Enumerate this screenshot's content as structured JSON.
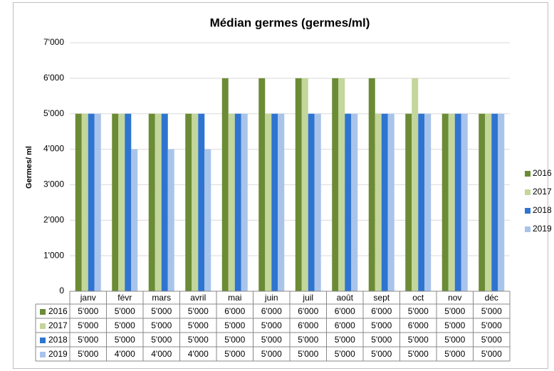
{
  "chart_data": {
    "type": "bar",
    "title": "Médian germes (germes/ml)",
    "y_label": "Germes/ ml",
    "categories": [
      "janv",
      "févr",
      "mars",
      "avril",
      "mai",
      "juin",
      "juil",
      "août",
      "sept",
      "oct",
      "nov",
      "déc"
    ],
    "series": [
      {
        "name": "2016",
        "color": "#6b8b35",
        "values": [
          5000,
          5000,
          5000,
          5000,
          6000,
          6000,
          6000,
          6000,
          6000,
          5000,
          5000,
          5000
        ],
        "value_labels": [
          "5'000",
          "5'000",
          "5'000",
          "5'000",
          "6'000",
          "6'000",
          "6'000",
          "6'000",
          "6'000",
          "5'000",
          "5'000",
          "5'000"
        ]
      },
      {
        "name": "2017",
        "color": "#c3d69b",
        "values": [
          5000,
          5000,
          5000,
          5000,
          5000,
          5000,
          6000,
          6000,
          5000,
          6000,
          5000,
          5000
        ],
        "value_labels": [
          "5'000",
          "5'000",
          "5'000",
          "5'000",
          "5'000",
          "5'000",
          "6'000",
          "6'000",
          "5'000",
          "6'000",
          "5'000",
          "5'000"
        ]
      },
      {
        "name": "2018",
        "color": "#2f74d0",
        "values": [
          5000,
          5000,
          5000,
          5000,
          5000,
          5000,
          5000,
          5000,
          5000,
          5000,
          5000,
          5000
        ],
        "value_labels": [
          "5'000",
          "5'000",
          "5'000",
          "5'000",
          "5'000",
          "5'000",
          "5'000",
          "5'000",
          "5'000",
          "5'000",
          "5'000",
          "5'000"
        ]
      },
      {
        "name": "2019",
        "color": "#a9c4eb",
        "values": [
          5000,
          4000,
          4000,
          4000,
          5000,
          5000,
          5000,
          5000,
          5000,
          5000,
          5000,
          5000
        ],
        "value_labels": [
          "5'000",
          "4'000",
          "4'000",
          "4'000",
          "5'000",
          "5'000",
          "5'000",
          "5'000",
          "5'000",
          "5'000",
          "5'000",
          "5'000"
        ]
      }
    ],
    "ylim": [
      0,
      7000
    ],
    "yticks": [
      0,
      {
        "value": 1000,
        "label": "1'000"
      },
      {
        "value": 2000,
        "label": "2'000"
      },
      {
        "value": 3000,
        "label": "3'000"
      },
      {
        "value": 4000,
        "label": "4'000"
      },
      {
        "value": 5000,
        "label": "5'000"
      },
      {
        "value": 6000,
        "label": "6'000"
      },
      {
        "value": 7000,
        "label": "7'000"
      }
    ],
    "grid": true,
    "legend": "right"
  }
}
